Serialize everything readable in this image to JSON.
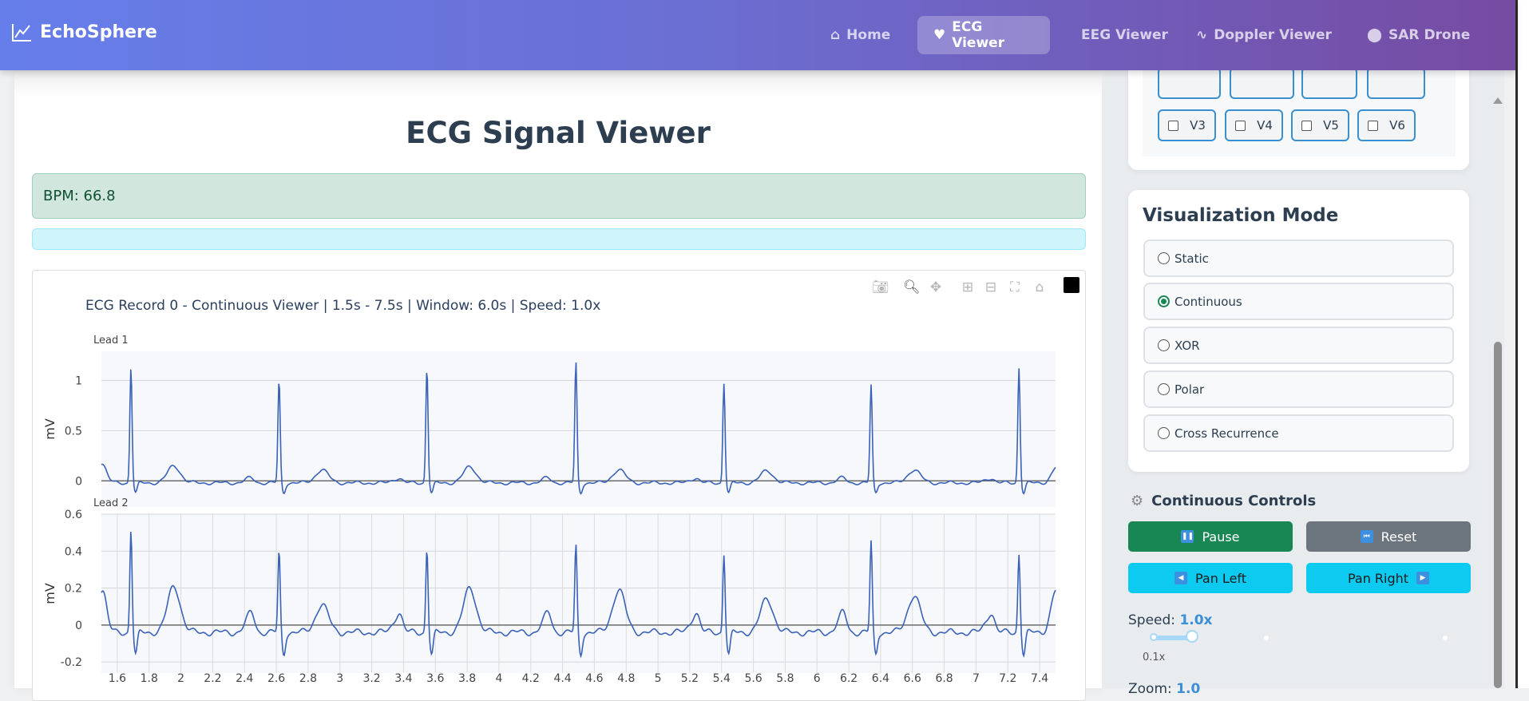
{
  "header": {
    "brand": "EchoSphere",
    "nav": [
      {
        "label": "Home",
        "icon": "home-icon",
        "active": false
      },
      {
        "label": "ECG Viewer",
        "icon": "heart-pulse-icon",
        "active": true
      },
      {
        "label": "EEG Viewer",
        "icon": "",
        "active": false
      },
      {
        "label": "Doppler Viewer",
        "icon": "waveform-icon",
        "active": false
      },
      {
        "label": "SAR Drone",
        "icon": "map-pin-icon",
        "active": false
      }
    ]
  },
  "main": {
    "title": "ECG Signal Viewer",
    "bpm": "BPM: 66.8",
    "info": ""
  },
  "plot": {
    "toolbar": [
      "camera-icon",
      "zoom-icon",
      "pan-icon",
      "zoom-in-icon",
      "zoom-out-icon",
      "autoscale-icon",
      "reset-axes-icon"
    ]
  },
  "chart_data": {
    "type": "line",
    "title": "ECG Record 0 - Continuous Viewer | 1.5s - 7.5s | Window: 6.0s | Speed: 1.0x",
    "xlim": [
      1.5,
      7.5
    ],
    "xticks": [
      "1.6",
      "1.8",
      "2",
      "2.2",
      "2.4",
      "2.6",
      "2.8",
      "3",
      "3.2",
      "3.4",
      "3.6",
      "3.8",
      "4",
      "4.2",
      "4.4",
      "4.6",
      "4.8",
      "5",
      "5.2",
      "5.4",
      "5.6",
      "5.8",
      "6",
      "6.2",
      "6.4",
      "6.6",
      "6.8",
      "7",
      "7.2",
      "7.4"
    ],
    "line_color": "#3a62b8",
    "subplots": [
      {
        "name": "Lead 1",
        "ylabel": "mV",
        "ylim": [
          -0.26,
          1.29
        ],
        "yticks": [
          "0",
          "0.5",
          "1"
        ],
        "r_peaks": {
          "t": [
            1.686,
            2.617,
            3.547,
            4.484,
            5.415,
            6.34,
            7.27
          ],
          "amplitude": [
            1.15,
            1.02,
            1.15,
            1.2,
            1.0,
            0.97,
            1.15
          ]
        },
        "t_wave_amplitude": [
          0.17,
          0.13,
          0.16,
          0.13,
          0.12,
          0.13,
          0.12
        ],
        "start_value": 0.15,
        "end_value": 0.08
      },
      {
        "name": "Lead 2",
        "ylabel": "mV",
        "ylim": [
          -0.26,
          0.6
        ],
        "yticks": [
          "-0.2",
          "0",
          "0.2",
          "0.4",
          "0.6"
        ],
        "r_peaks": {
          "t": [
            1.686,
            2.617,
            3.547,
            4.484,
            5.415,
            6.34,
            7.27
          ],
          "amplitude": [
            0.56,
            0.44,
            0.46,
            0.47,
            0.43,
            0.49,
            0.43
          ]
        },
        "t_wave_amplitude": [
          0.25,
          0.15,
          0.24,
          0.23,
          0.18,
          0.2,
          0.06
        ],
        "start_value": 0.13,
        "end_value": 0.19
      }
    ]
  },
  "sidebar": {
    "leads": [
      "V3",
      "V4",
      "V5",
      "V6"
    ],
    "viz_title": "Visualization Mode",
    "modes": [
      {
        "label": "Static",
        "checked": false
      },
      {
        "label": "Continuous",
        "checked": true
      },
      {
        "label": "XOR",
        "checked": false
      },
      {
        "label": "Polar",
        "checked": false
      },
      {
        "label": "Cross Recurrence",
        "checked": false
      }
    ],
    "controls_title": "Continuous Controls",
    "pause": "Pause",
    "reset": "Reset",
    "pan_left": "Pan Left",
    "pan_right": "Pan Right",
    "speed_label": "Speed:",
    "speed_value": "1.0x",
    "speed_min": "0.1x",
    "speed_fraction": 0.12,
    "zoom_label": "Zoom:",
    "zoom_value": "1.0"
  }
}
